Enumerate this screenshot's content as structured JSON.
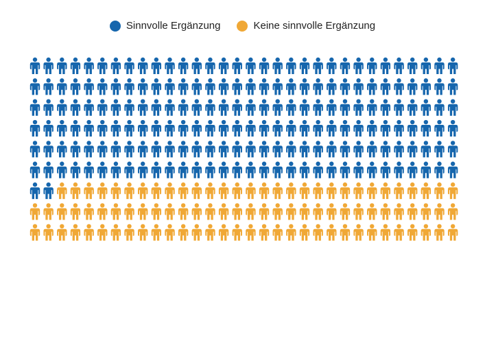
{
  "chart_data": {
    "type": "pictogram",
    "title": "",
    "unit_icon": "person-icon",
    "series": [
      {
        "name": "Sinnvolle Ergänzung",
        "value": 194,
        "color": "#1666ad"
      },
      {
        "name": "Keine sinnvolle Ergänzung",
        "value": 94,
        "color": "#f0a836"
      }
    ],
    "total": 288,
    "grid": {
      "rows": 9,
      "columns": 32
    },
    "legend_position": "top-center"
  }
}
